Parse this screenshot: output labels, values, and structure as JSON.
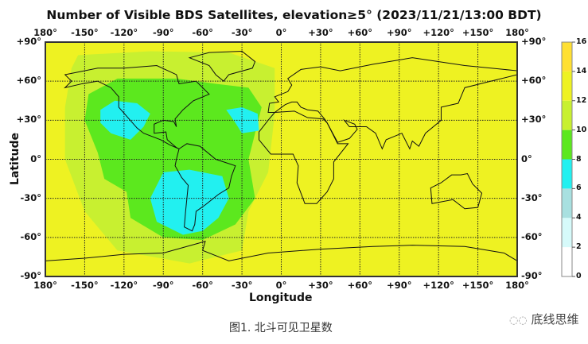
{
  "title": "Number of Visible BDS Satellites, elevation≥5° (2023/11/21/13:00 BDT)",
  "x_ticks": [
    "180°",
    "-150°",
    "-120°",
    "-90°",
    "-60°",
    "-30°",
    "0°",
    "+30°",
    "+60°",
    "+90°",
    "+120°",
    "+150°",
    "180°"
  ],
  "y_ticks": [
    "+90°",
    "+60°",
    "+30°",
    "0°",
    "-30°",
    "-60°",
    "-90°"
  ],
  "xlabel": "Longitude",
  "ylabel": "Latitude",
  "colorbar": {
    "ticks": [
      "0",
      "2",
      "4",
      "6",
      "8",
      "10",
      "12",
      "14",
      "16"
    ],
    "bands": [
      {
        "range": [
          0,
          2
        ],
        "color": "#ffffff"
      },
      {
        "range": [
          2,
          4
        ],
        "color": "#d6fafa"
      },
      {
        "range": [
          4,
          6
        ],
        "color": "#a8e0e0"
      },
      {
        "range": [
          6,
          8
        ],
        "color": "#22f0f0"
      },
      {
        "range": [
          8,
          10
        ],
        "color": "#5ce81e"
      },
      {
        "range": [
          10,
          12
        ],
        "color": "#c8f030"
      },
      {
        "range": [
          12,
          14
        ],
        "color": "#eef222"
      },
      {
        "range": [
          14,
          16
        ],
        "color": "#ffe033"
      }
    ]
  },
  "caption": "图1. 北斗可见卫星数",
  "watermark": "底线思维"
}
